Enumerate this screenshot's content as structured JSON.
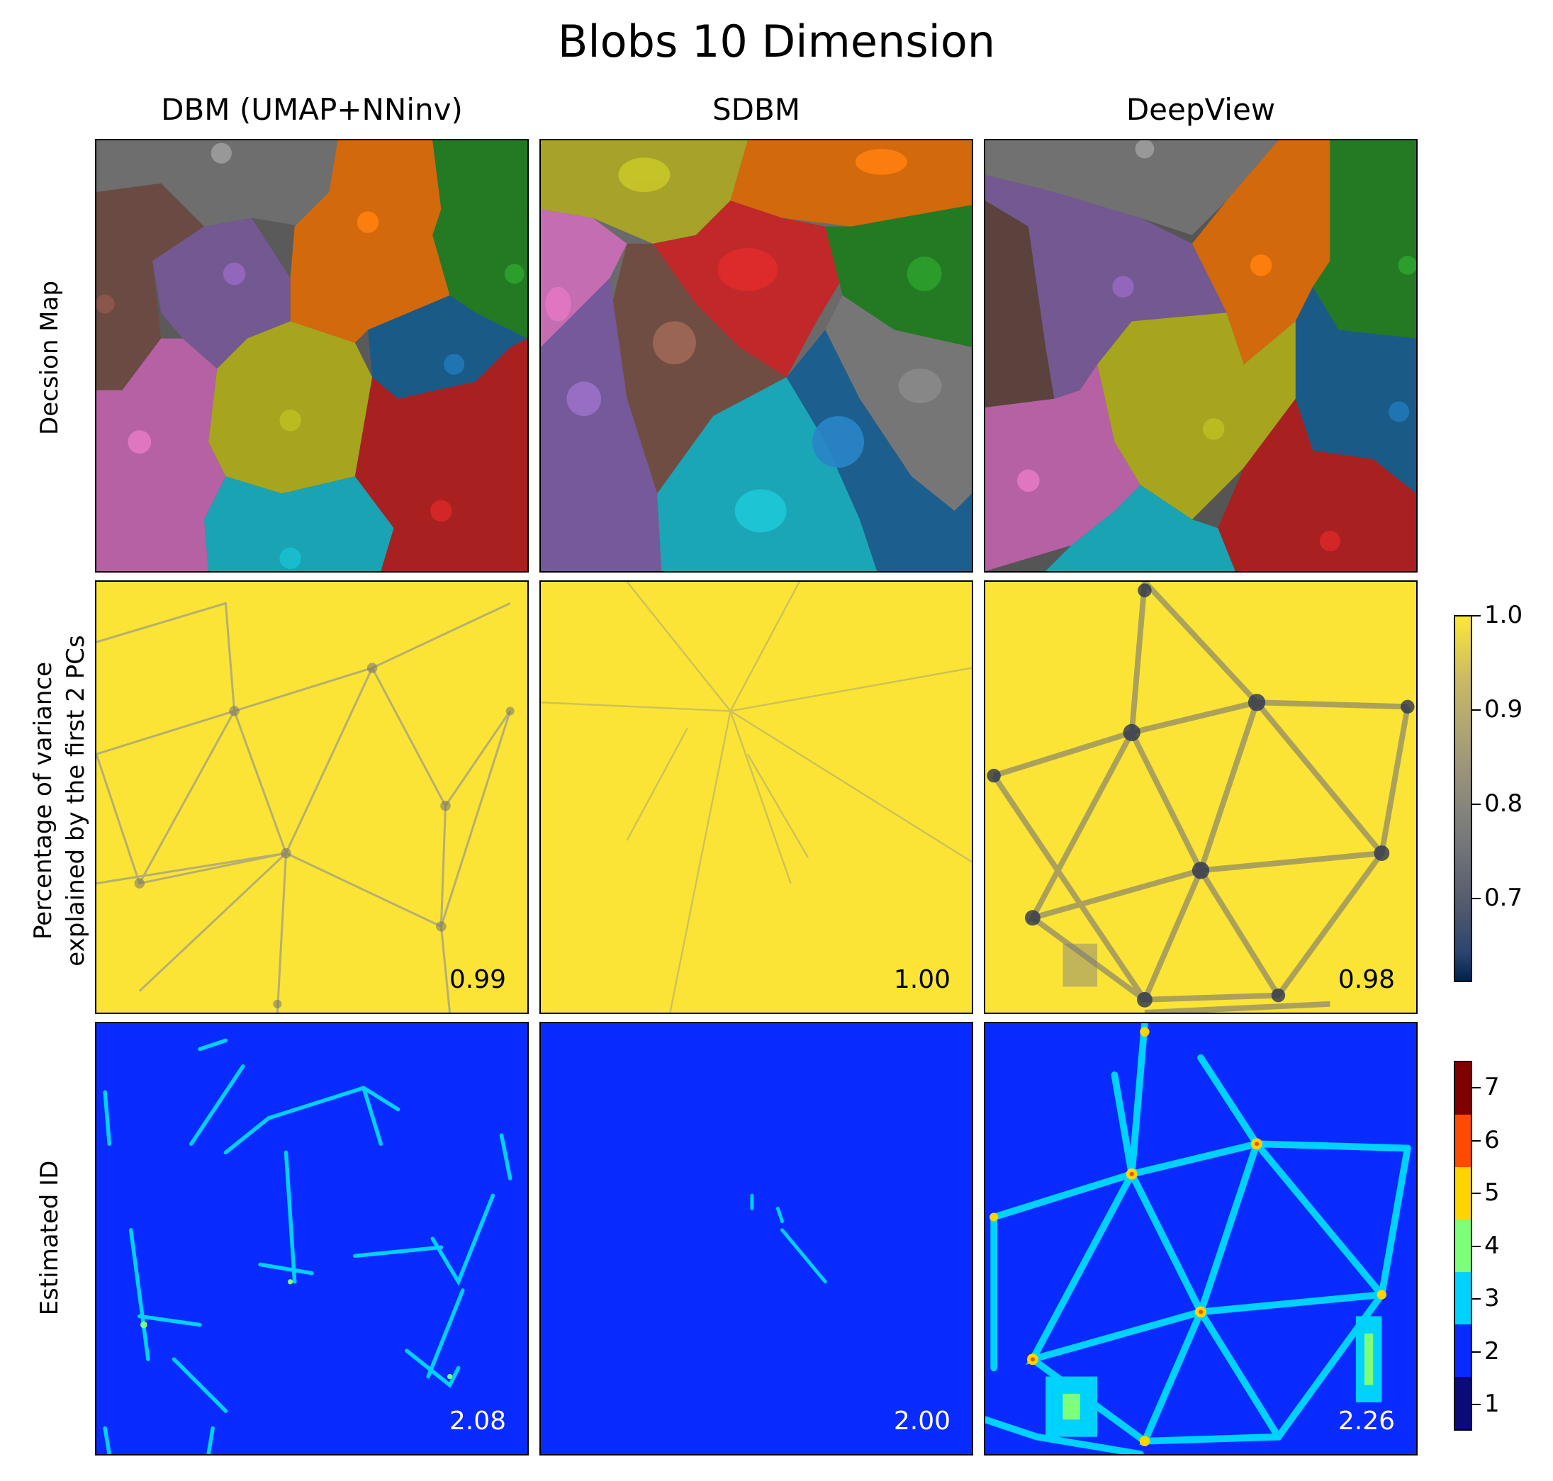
{
  "figure_title": "Blobs 10 Dimension",
  "columns": [
    "DBM (UMAP+NNinv)",
    "SDBM",
    "DeepView"
  ],
  "rows": [
    "Decsion Map",
    "Percentage of variance\nexplained by the first 2 PCs",
    "Estimated ID"
  ],
  "variance_colorbar": {
    "ticks": [
      "1.0",
      "0.9",
      "0.8",
      "0.7"
    ],
    "range": [
      0.61,
      1.0
    ],
    "colormap": "cividis"
  },
  "id_colorbar": {
    "ticks": [
      "7",
      "6",
      "5",
      "4",
      "3",
      "2",
      "1"
    ],
    "levels": [
      1,
      2,
      3,
      4,
      5,
      6,
      7
    ],
    "colors": [
      "#0a0a7a",
      "#0a2bff",
      "#00d2ff",
      "#7dff7a",
      "#ffd400",
      "#ff4a00",
      "#800000"
    ]
  },
  "class_colors": [
    "#1f77b4",
    "#ff7f0e",
    "#2ca02c",
    "#d62728",
    "#9467bd",
    "#8c564b",
    "#e377c2",
    "#7f7f7f",
    "#bcbd22",
    "#17becf"
  ],
  "chart_data": [
    {
      "type": "heatmap",
      "row": "Percentage of variance explained by the first 2 PCs",
      "column": "DBM (UMAP+NNinv)",
      "mean_value": "0.99"
    },
    {
      "type": "heatmap",
      "row": "Percentage of variance explained by the first 2 PCs",
      "column": "SDBM",
      "mean_value": "1.00"
    },
    {
      "type": "heatmap",
      "row": "Percentage of variance explained by the first 2 PCs",
      "column": "DeepView",
      "mean_value": "0.98"
    },
    {
      "type": "heatmap",
      "row": "Estimated ID",
      "column": "DBM (UMAP+NNinv)",
      "mean_value": "2.08"
    },
    {
      "type": "heatmap",
      "row": "Estimated ID",
      "column": "SDBM",
      "mean_value": "2.00"
    },
    {
      "type": "heatmap",
      "row": "Estimated ID",
      "column": "DeepView",
      "mean_value": "2.26"
    }
  ]
}
